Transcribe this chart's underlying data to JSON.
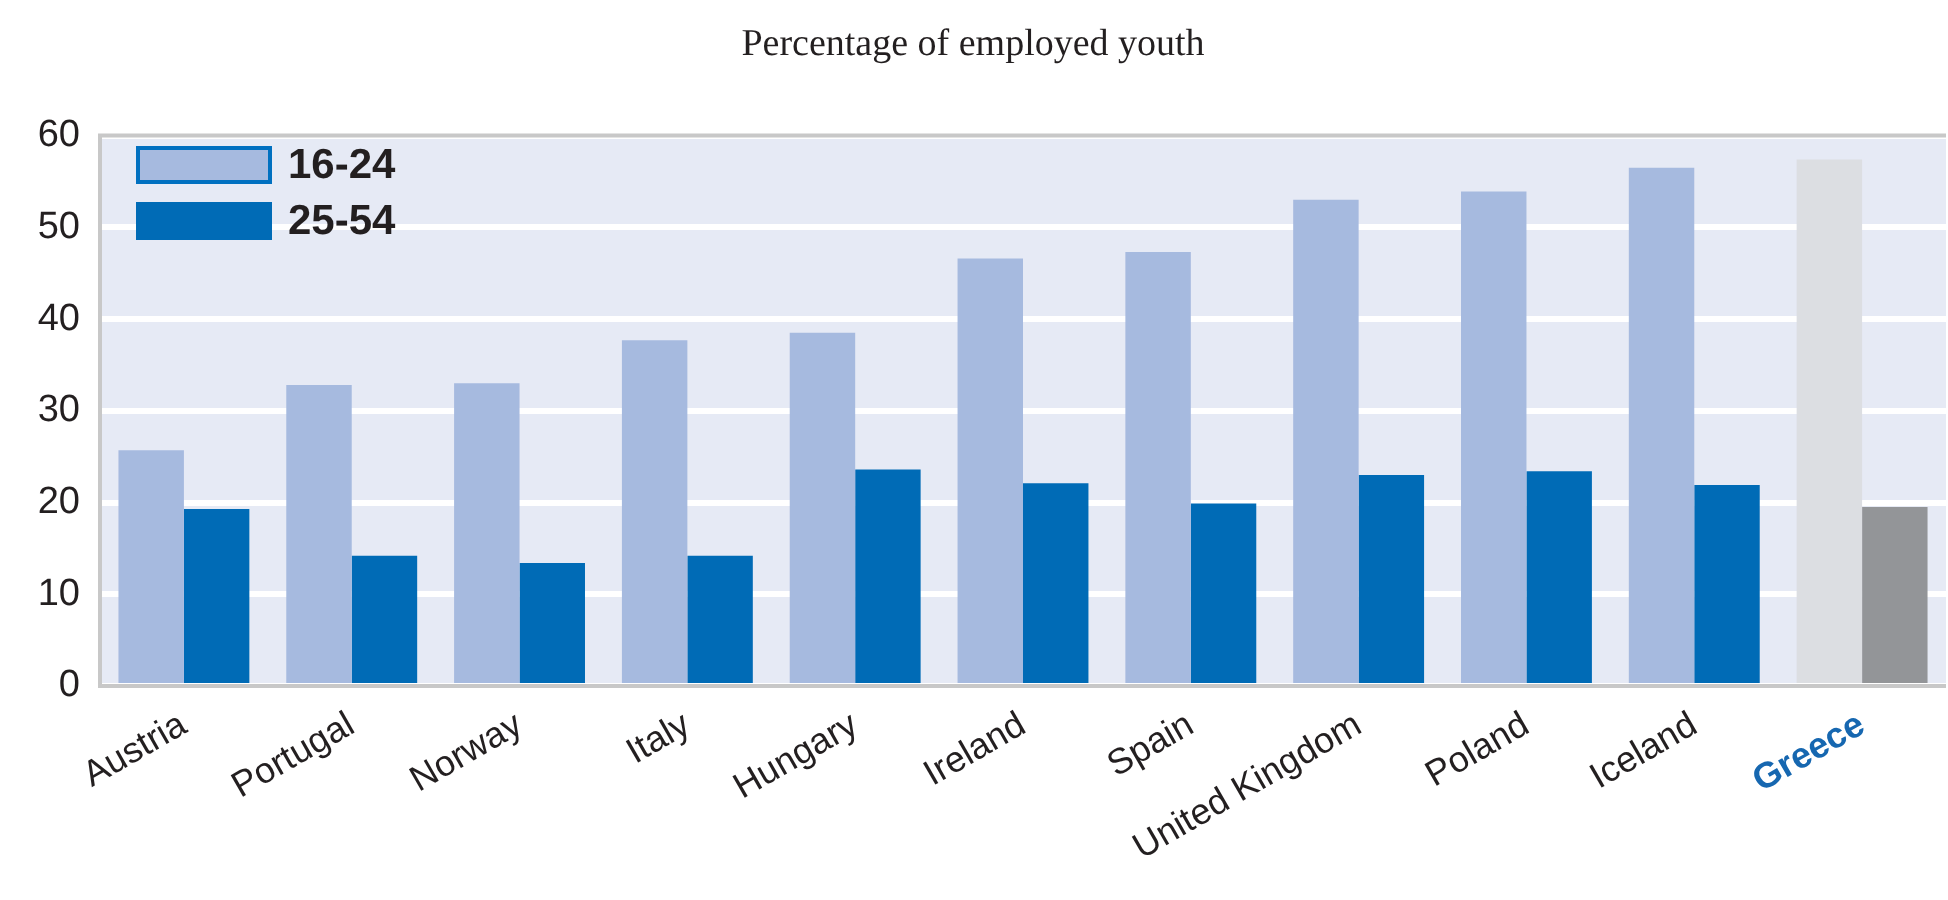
{
  "chart_data": {
    "type": "bar",
    "title": "Percentage of employed youth",
    "categories": [
      "Austria",
      "Portugal",
      "Norway",
      "Italy",
      "Hungary",
      "Ireland",
      "Spain",
      "United Kingdom",
      "Poland",
      "Iceland",
      "Greece"
    ],
    "series": [
      {
        "name": "16-24",
        "color": "#a6badf",
        "colors": [
          "#a6badf",
          "#a6badf",
          "#a6badf",
          "#a6badf",
          "#a6badf",
          "#a6badf",
          "#a6badf",
          "#a6badf",
          "#a6badf",
          "#a6badf",
          "#dcdee2"
        ],
        "values": [
          25.7,
          32.8,
          33.0,
          37.7,
          38.5,
          46.6,
          47.3,
          53.0,
          53.9,
          56.5,
          57.4
        ]
      },
      {
        "name": "25-54",
        "color": "#006bb6",
        "colors": [
          "#006bb6",
          "#006bb6",
          "#006bb6",
          "#006bb6",
          "#006bb6",
          "#006bb6",
          "#006bb6",
          "#006bb6",
          "#006bb6",
          "#006bb6",
          "#939598"
        ],
        "values": [
          19.3,
          14.2,
          13.4,
          14.2,
          23.6,
          22.1,
          19.9,
          23.0,
          23.4,
          21.9,
          19.5
        ]
      }
    ],
    "ylim": [
      0,
      60
    ],
    "yticks": [
      0,
      10,
      20,
      30,
      40,
      50,
      60
    ],
    "grid": "y",
    "legend": "top left"
  }
}
